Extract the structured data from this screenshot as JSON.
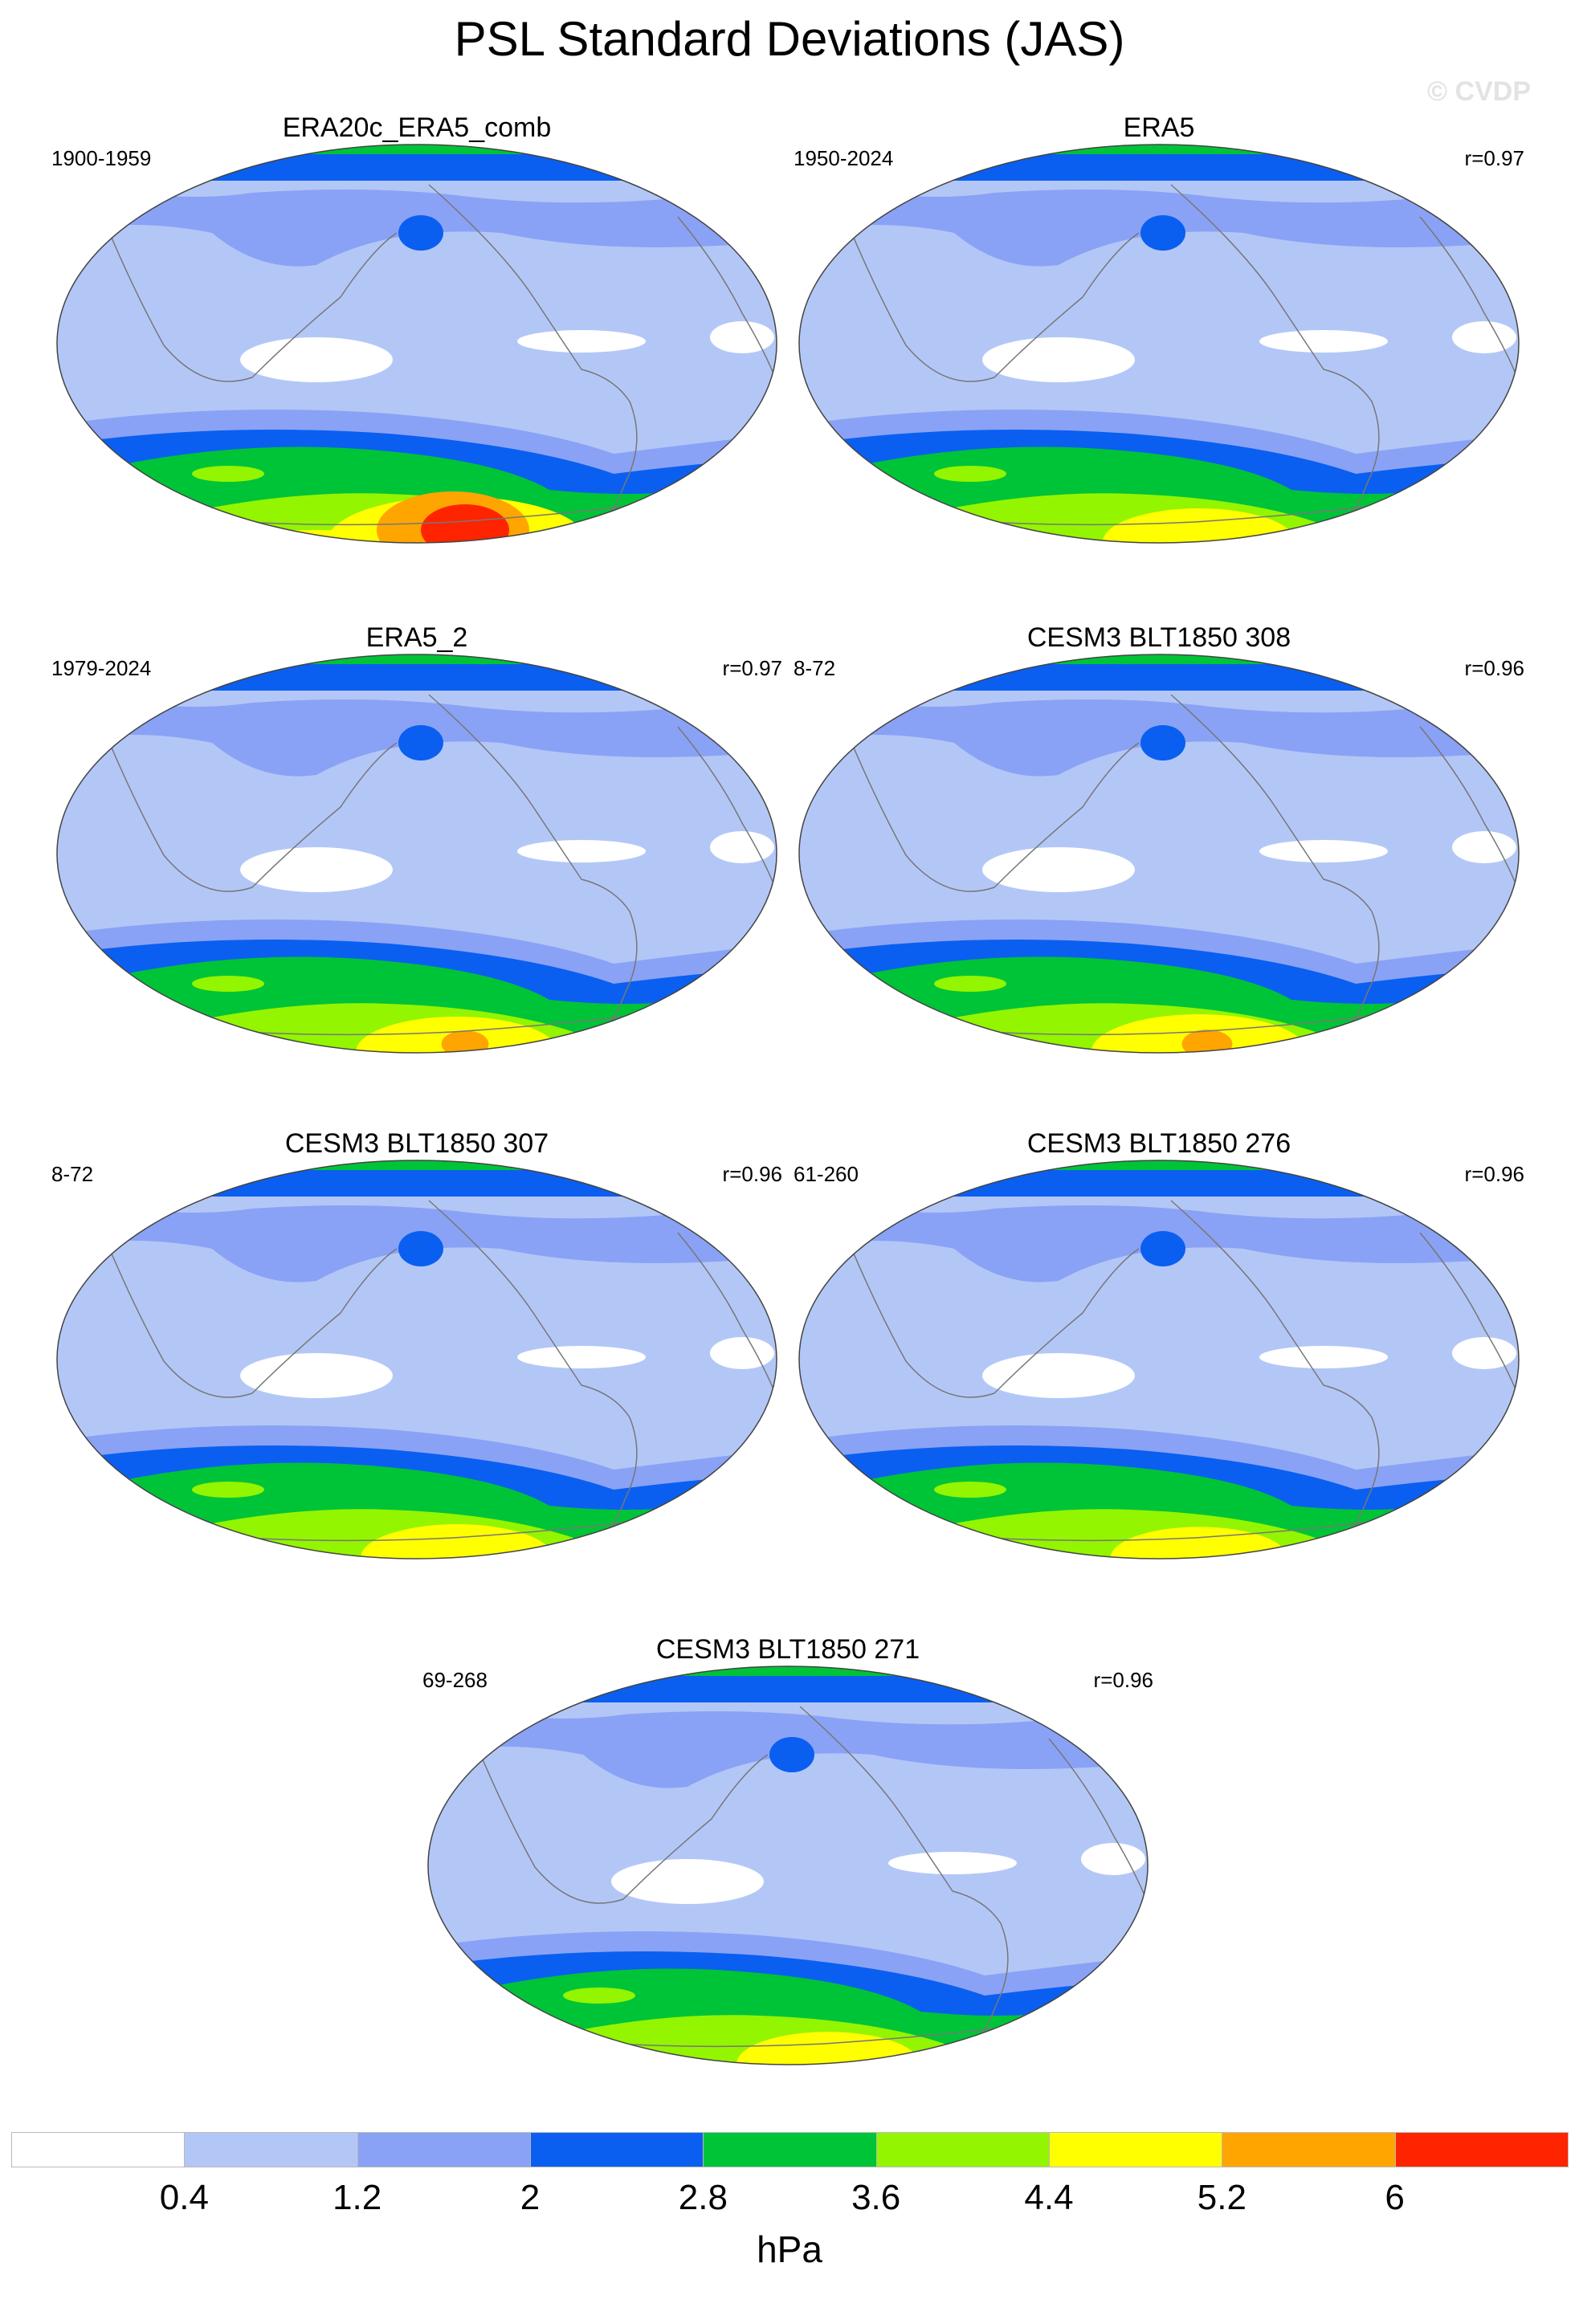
{
  "title": "PSL Standard Deviations (JAS)",
  "watermark": "© CVDP",
  "panels": [
    {
      "name": "ERA20c_ERA5_comb",
      "period": "1900-1959",
      "corr": "",
      "intensity": 1.35
    },
    {
      "name": "ERA5",
      "period": "1950-2024",
      "corr": "r=0.97",
      "intensity": 1.0
    },
    {
      "name": "ERA5_2",
      "period": "1979-2024",
      "corr": "r=0.97",
      "intensity": 1.05
    },
    {
      "name": "CESM3 BLT1850 308",
      "period": "8-72",
      "corr": "r=0.96",
      "intensity": 1.12
    },
    {
      "name": "CESM3 BLT1850 307",
      "period": "8-72",
      "corr": "r=0.96",
      "intensity": 1.0
    },
    {
      "name": "CESM3 BLT1850 276",
      "period": "61-260",
      "corr": "r=0.96",
      "intensity": 0.92
    },
    {
      "name": "CESM3 BLT1850 271",
      "period": "69-268",
      "corr": "r=0.96",
      "intensity": 0.95
    }
  ],
  "colorbar": {
    "colors": [
      "#ffffff",
      "#b3c7f7",
      "#8aa2f5",
      "#0a5ff0",
      "#00c437",
      "#93f500",
      "#ffff00",
      "#ffa500",
      "#ff2400"
    ],
    "ticks": [
      "0.4",
      "1.2",
      "2",
      "2.8",
      "3.6",
      "4.4",
      "5.2",
      "6"
    ],
    "unit": "hPa"
  }
}
